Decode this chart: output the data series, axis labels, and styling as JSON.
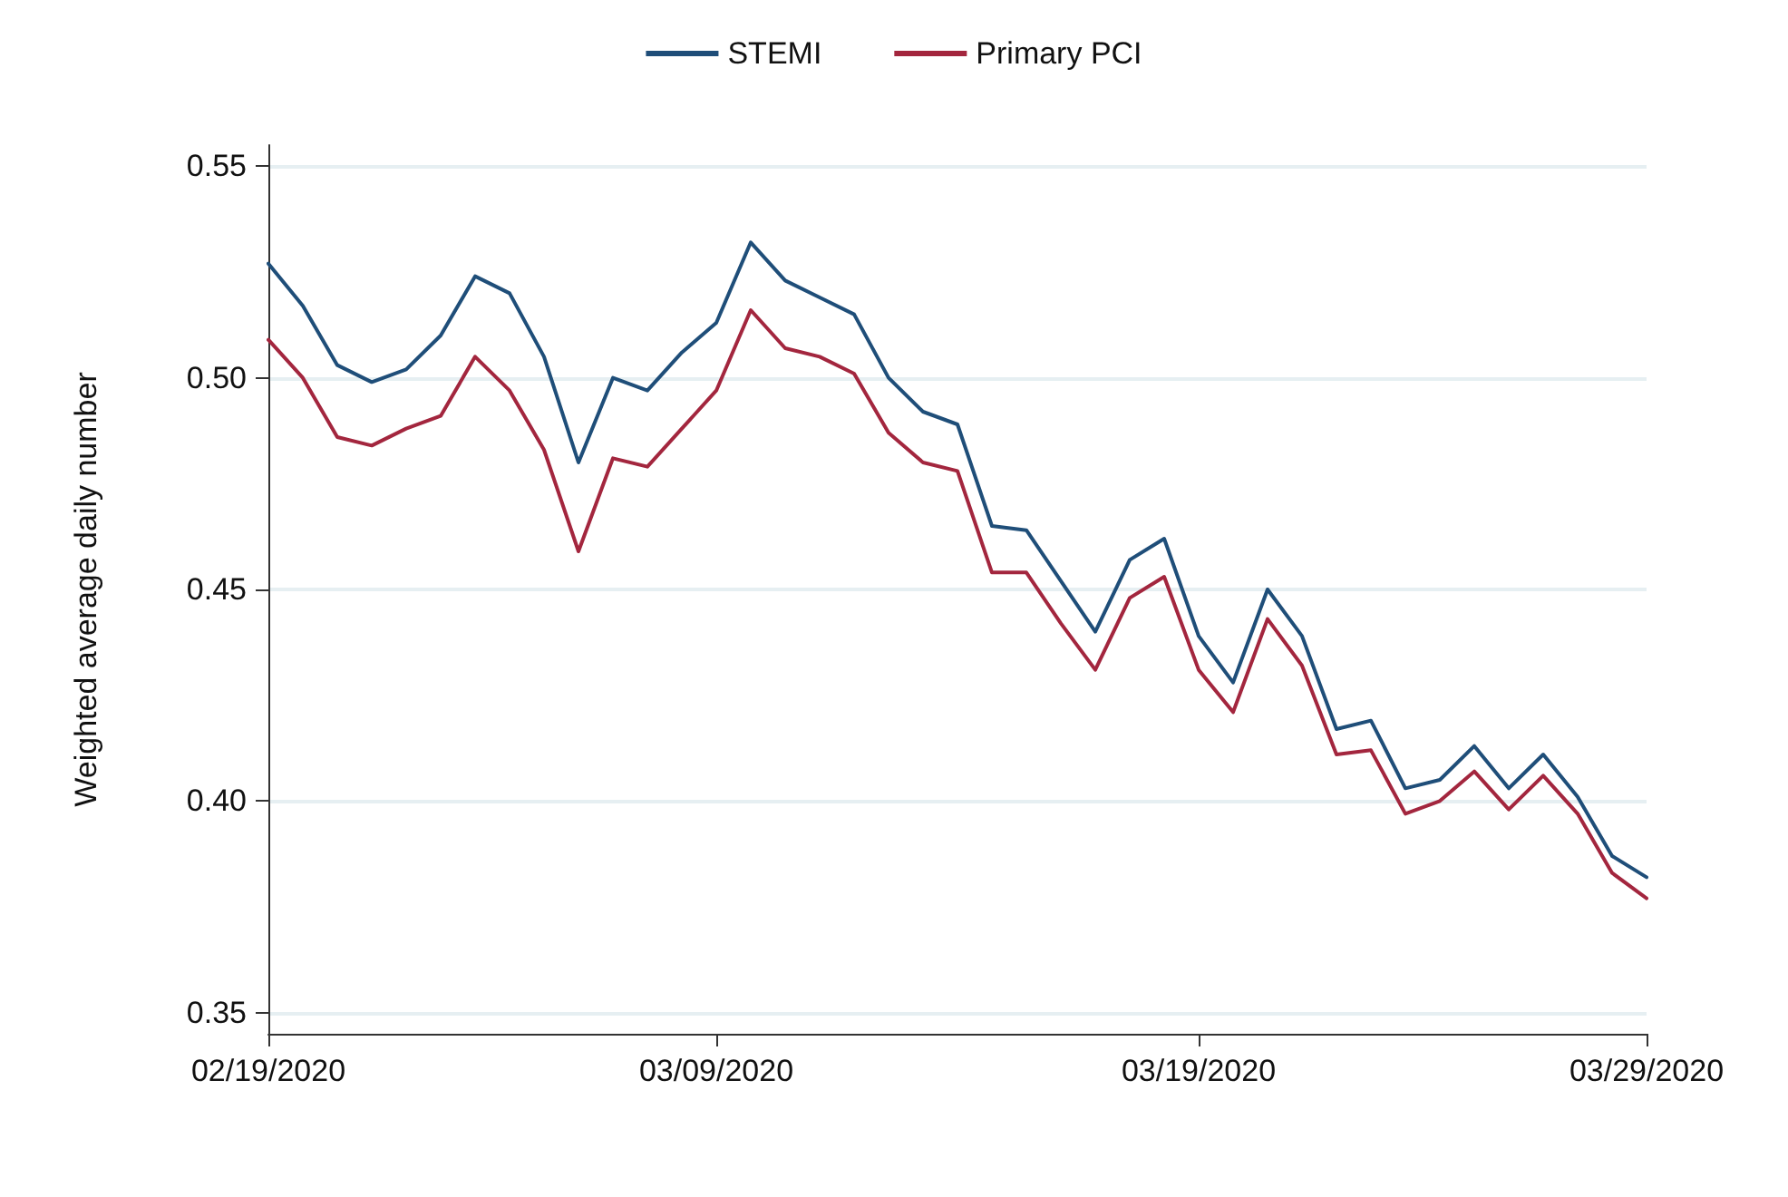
{
  "chart_data": {
    "type": "line",
    "ylabel": "Weighted average daily number",
    "categories": [
      "02/19/2020",
      null,
      null,
      null,
      null,
      null,
      null,
      null,
      null,
      null,
      null,
      null,
      null,
      "03/09/2020",
      null,
      null,
      null,
      null,
      null,
      null,
      null,
      null,
      null,
      null,
      null,
      null,
      null,
      "03/19/2020",
      null,
      null,
      null,
      null,
      null,
      null,
      null,
      null,
      null,
      null,
      null,
      null,
      "03/29/2020"
    ],
    "series": [
      {
        "name": "STEMI",
        "color": "#1f4e79",
        "values": [
          0.527,
          0.517,
          0.503,
          0.499,
          0.502,
          0.51,
          0.524,
          0.52,
          0.505,
          0.48,
          0.5,
          0.497,
          0.506,
          0.513,
          0.532,
          0.523,
          0.519,
          0.515,
          0.5,
          0.492,
          0.489,
          0.465,
          0.464,
          0.452,
          0.44,
          0.457,
          0.462,
          0.439,
          0.428,
          0.45,
          0.439,
          0.417,
          0.419,
          0.403,
          0.405,
          0.413,
          0.403,
          0.411,
          0.401,
          0.387,
          0.382
        ]
      },
      {
        "name": "Primary PCI",
        "color": "#a3263e",
        "values": [
          0.509,
          0.5,
          0.486,
          0.484,
          0.488,
          0.491,
          0.505,
          0.497,
          0.483,
          0.459,
          0.481,
          0.479,
          0.488,
          0.497,
          0.516,
          0.507,
          0.505,
          0.501,
          0.487,
          0.48,
          0.478,
          0.454,
          0.454,
          0.442,
          0.431,
          0.448,
          0.453,
          0.431,
          0.421,
          0.443,
          0.432,
          0.411,
          0.412,
          0.397,
          0.4,
          0.407,
          0.398,
          0.406,
          0.397,
          0.383,
          0.377
        ]
      }
    ],
    "ylim": [
      0.345,
      0.555
    ],
    "yticks": [
      {
        "value": 0.35,
        "label": "0.35"
      },
      {
        "value": 0.4,
        "label": "0.40"
      },
      {
        "value": 0.45,
        "label": "0.45"
      },
      {
        "value": 0.5,
        "label": "0.50"
      },
      {
        "value": 0.55,
        "label": "0.55"
      }
    ],
    "grid": "y",
    "legend": "top",
    "marker": "none",
    "line_style": "solid"
  }
}
